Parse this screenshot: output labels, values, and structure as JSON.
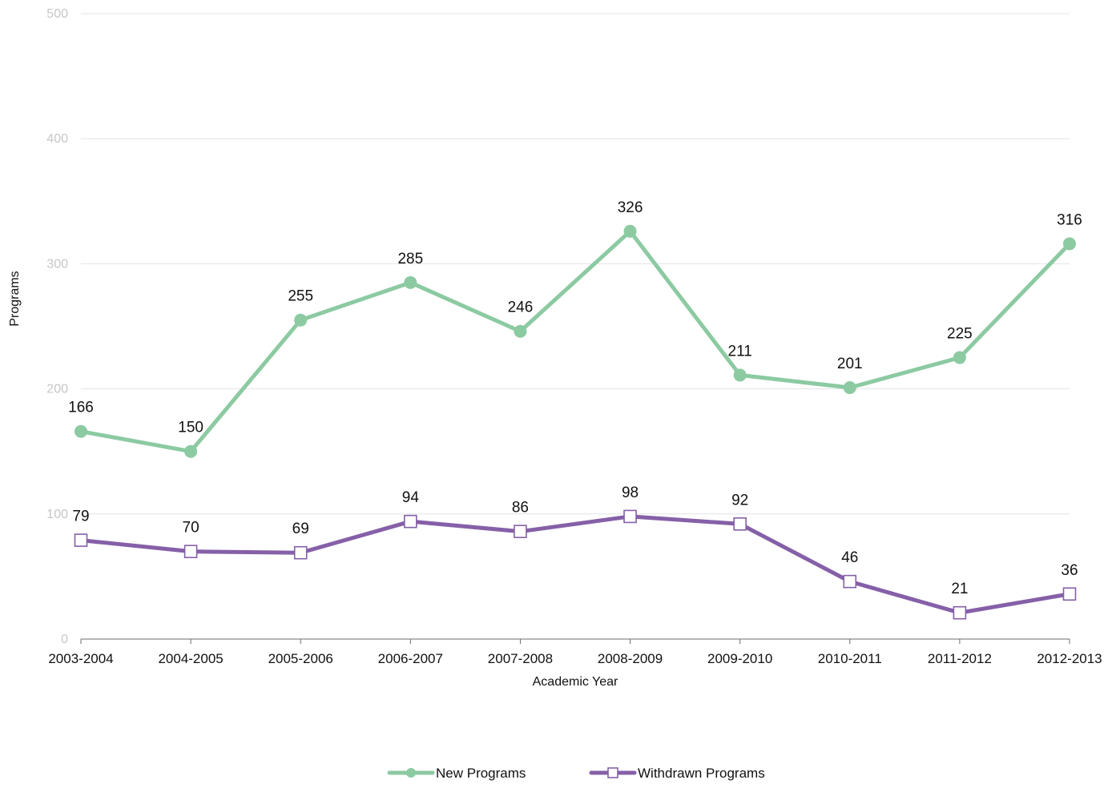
{
  "chart_data": {
    "type": "line",
    "title": "",
    "xlabel": "Academic Year",
    "ylabel": "Programs",
    "ylim": [
      0,
      500
    ],
    "yticks": [
      "0",
      "100",
      "200",
      "300",
      "400",
      "500"
    ],
    "categories": [
      "2003-2004",
      "2004-2005",
      "2005-2006",
      "2006-2007",
      "2007-2008",
      "2008-2009",
      "2009-2010",
      "2010-2011",
      "2011-2012",
      "2012-2013"
    ],
    "series": [
      {
        "name": "New Programs",
        "color": "#8ccaa2",
        "marker": "circle",
        "values": [
          166,
          150,
          255,
          285,
          246,
          326,
          211,
          201,
          225,
          316
        ]
      },
      {
        "name": "Withdrawn Programs",
        "color": "#8560a8",
        "marker": "square-open",
        "values": [
          79,
          70,
          69,
          94,
          86,
          98,
          92,
          46,
          21,
          36
        ]
      }
    ],
    "grid": true,
    "data_labels": true,
    "legend_position": "bottom-center"
  }
}
